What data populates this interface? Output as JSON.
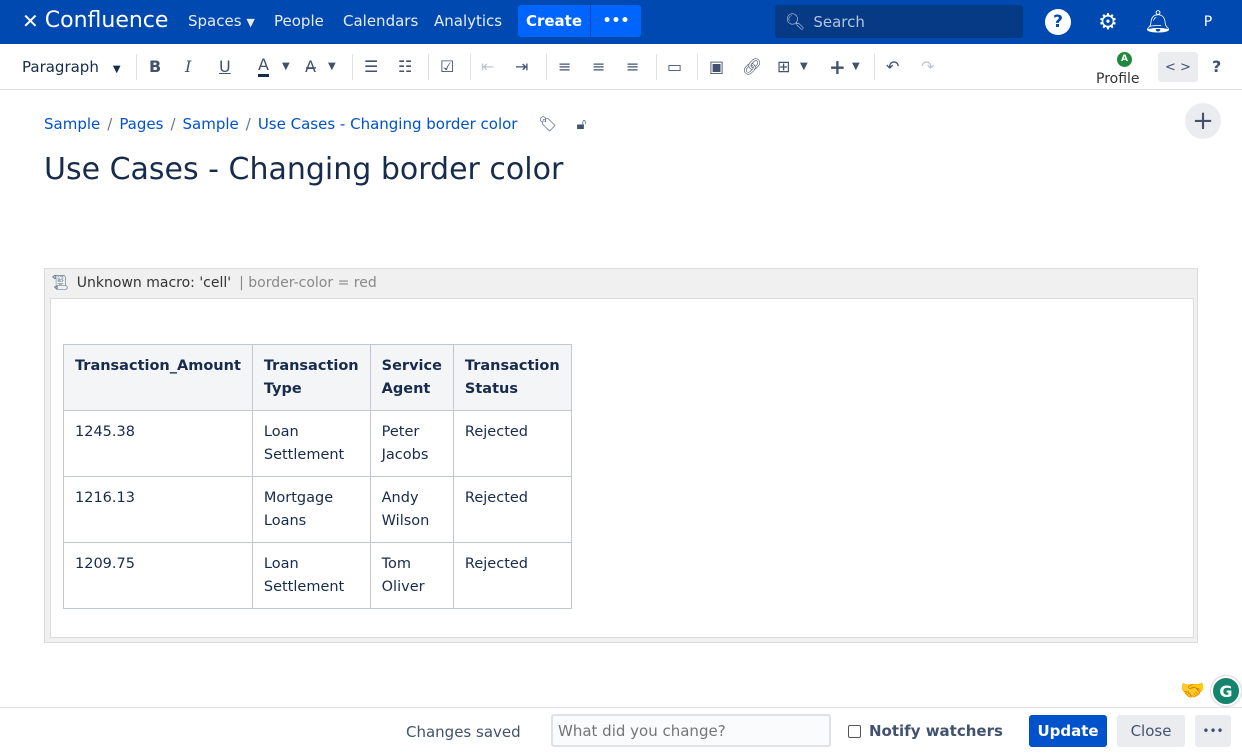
{
  "nav": {
    "logo": "Confluence",
    "spaces": "Spaces",
    "people": "People",
    "calendars": "Calendars",
    "analytics": "Analytics",
    "create": "Create",
    "more": "•••",
    "search_placeholder": "Search",
    "avatar_alt": "P"
  },
  "toolbar": {
    "paragraph": "Paragraph",
    "bold": "B",
    "italic": "I",
    "underline": "U",
    "text_color": "A",
    "profile": "Profile",
    "profile_badge": "A",
    "source": "< >",
    "help": "?"
  },
  "breadcrumbs": [
    "Sample",
    "Pages",
    "Sample",
    "Use Cases - Changing border color"
  ],
  "page": {
    "title": "Use Cases - Changing border color"
  },
  "macro": {
    "name": "Unknown macro: 'cell'",
    "params": "| border-color = red"
  },
  "table": {
    "headers": [
      "Transaction_Amount",
      "Transaction Type",
      "Service Agent",
      "Transaction Status"
    ],
    "rows": [
      [
        "1245.38",
        "Loan Settlement",
        "Peter Jacobs",
        "Rejected"
      ],
      [
        "1216.13",
        "Mortgage Loans",
        "Andy Wilson",
        "Rejected"
      ],
      [
        "1209.75",
        "Loan Settlement",
        "Tom Oliver",
        "Rejected"
      ]
    ]
  },
  "bottom": {
    "status": "Changes saved",
    "comment_placeholder": "What did you change?",
    "notify": "Notify watchers",
    "update": "Update",
    "close": "Close",
    "more": "•••"
  },
  "colors": {
    "nav": "#0049b0",
    "primary": "#0052cc",
    "create": "#0065ff"
  }
}
